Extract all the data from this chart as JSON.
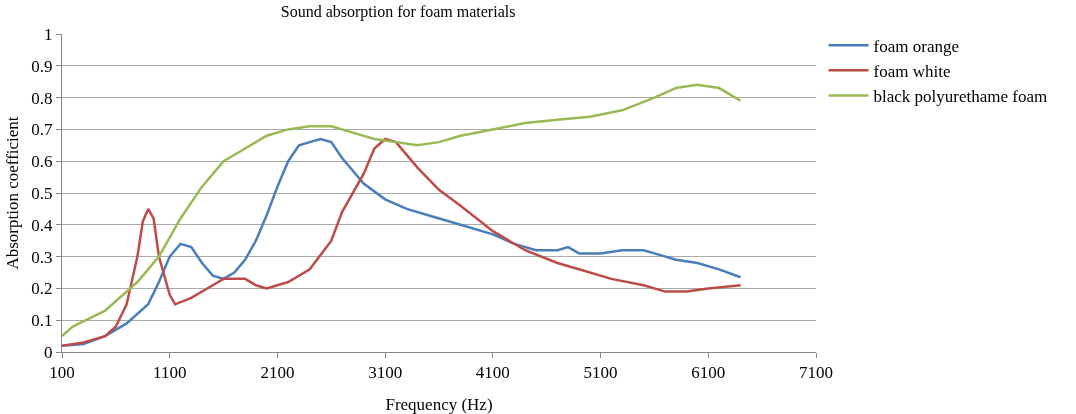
{
  "chart_data": {
    "type": "line",
    "title": "Sound absorption for foam materials",
    "xlabel": "Frequency (Hz)",
    "ylabel": "Absorption coefficient",
    "xlim": [
      100,
      7100
    ],
    "xticks": [
      100,
      1100,
      2100,
      3100,
      4100,
      5100,
      6100,
      7100
    ],
    "ylim": [
      0,
      1
    ],
    "yticks": [
      0,
      0.1,
      0.2,
      0.3,
      0.4,
      0.5,
      0.6,
      0.7,
      0.8,
      0.9,
      1
    ],
    "grid": "y",
    "legend": "right",
    "marker": "none",
    "line_style": "solid",
    "series": [
      {
        "name": "foam orange",
        "color": "#4a7ebb",
        "x": [
          100,
          300,
          500,
          700,
          900,
          1000,
          1100,
          1200,
          1300,
          1400,
          1500,
          1600,
          1700,
          1800,
          1900,
          2000,
          2100,
          2200,
          2300,
          2400,
          2500,
          2600,
          2700,
          2800,
          2900,
          3100,
          3300,
          3500,
          3800,
          4100,
          4300,
          4500,
          4700,
          4800,
          4900,
          5100,
          5300,
          5500,
          5600,
          5800,
          6000,
          6200,
          6400
        ],
        "values": [
          0.02,
          0.025,
          0.05,
          0.09,
          0.15,
          0.22,
          0.3,
          0.34,
          0.33,
          0.28,
          0.24,
          0.23,
          0.25,
          0.29,
          0.35,
          0.43,
          0.52,
          0.6,
          0.65,
          0.66,
          0.67,
          0.66,
          0.61,
          0.57,
          0.53,
          0.48,
          0.45,
          0.43,
          0.4,
          0.37,
          0.34,
          0.32,
          0.32,
          0.33,
          0.31,
          0.31,
          0.32,
          0.32,
          0.31,
          0.29,
          0.28,
          0.26,
          0.235
        ]
      },
      {
        "name": "foam white",
        "color": "#be4b48",
        "x": [
          100,
          300,
          500,
          600,
          700,
          800,
          850,
          900,
          950,
          1000,
          1100,
          1150,
          1300,
          1500,
          1600,
          1800,
          1900,
          2000,
          2200,
          2400,
          2600,
          2700,
          2900,
          3000,
          3100,
          3200,
          3400,
          3600,
          3800,
          4100,
          4400,
          4700,
          4900,
          5200,
          5500,
          5700,
          5900,
          6100,
          6400
        ],
        "values": [
          0.02,
          0.03,
          0.05,
          0.08,
          0.15,
          0.3,
          0.41,
          0.45,
          0.42,
          0.3,
          0.18,
          0.15,
          0.17,
          0.21,
          0.23,
          0.23,
          0.21,
          0.2,
          0.22,
          0.26,
          0.35,
          0.44,
          0.56,
          0.64,
          0.67,
          0.66,
          0.58,
          0.51,
          0.46,
          0.38,
          0.32,
          0.28,
          0.26,
          0.23,
          0.21,
          0.19,
          0.19,
          0.2,
          0.21
        ]
      },
      {
        "name": "black polyurethame foam",
        "color": "#98b954",
        "x": [
          100,
          200,
          500,
          800,
          1000,
          1200,
          1400,
          1600,
          1800,
          2000,
          2200,
          2400,
          2600,
          2800,
          3000,
          3200,
          3400,
          3600,
          3800,
          4100,
          4400,
          4700,
          5000,
          5300,
          5600,
          5800,
          6000,
          6200,
          6400
        ],
        "values": [
          0.05,
          0.08,
          0.13,
          0.22,
          0.3,
          0.42,
          0.52,
          0.6,
          0.64,
          0.68,
          0.7,
          0.71,
          0.71,
          0.69,
          0.67,
          0.66,
          0.65,
          0.66,
          0.68,
          0.7,
          0.72,
          0.73,
          0.74,
          0.76,
          0.8,
          0.83,
          0.84,
          0.83,
          0.79
        ]
      }
    ]
  }
}
